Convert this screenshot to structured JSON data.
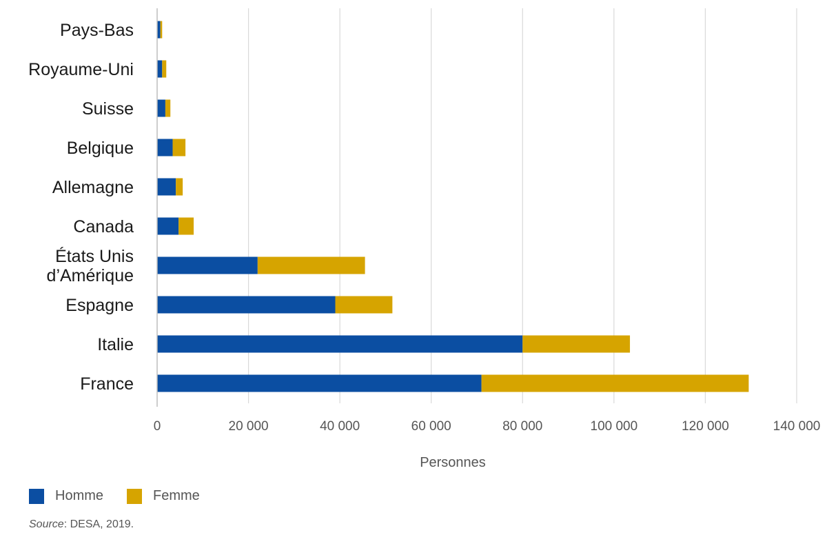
{
  "chart_data": {
    "type": "bar",
    "orientation": "horizontal",
    "stacked": true,
    "categories": [
      "Pays-Bas",
      "Royaume-Uni",
      "Suisse",
      "Belgique",
      "Allemagne",
      "Canada",
      "États Unis d’Amérique",
      "Espagne",
      "Italie",
      "France"
    ],
    "category_lines": [
      [
        "Pays-Bas"
      ],
      [
        "Royaume-Uni"
      ],
      [
        "Suisse"
      ],
      [
        "Belgique"
      ],
      [
        "Allemagne"
      ],
      [
        "Canada"
      ],
      [
        "États Unis",
        "d’Amérique"
      ],
      [
        "Espagne"
      ],
      [
        "Italie"
      ],
      [
        "France"
      ]
    ],
    "series": [
      {
        "name": "Homme",
        "color": "#0b4ea2",
        "values": [
          700,
          1100,
          1800,
          3400,
          4100,
          4700,
          22000,
          39000,
          80000,
          71000
        ]
      },
      {
        "name": "Femme",
        "color": "#d6a400",
        "values": [
          400,
          900,
          1100,
          2800,
          1500,
          3300,
          23500,
          12500,
          23500,
          58500
        ]
      }
    ],
    "xlabel": "Personnes",
    "xlim": [
      0,
      140000
    ],
    "xticks": [
      0,
      20000,
      40000,
      60000,
      80000,
      100000,
      120000,
      140000
    ],
    "xtick_labels": [
      "0",
      "20 000",
      "40 000",
      "60 000",
      "80 000",
      "100 000",
      "120 000",
      "140 000"
    ],
    "grid": "vertical",
    "legend_position": "bottom-left"
  },
  "source": {
    "label": "Source",
    "text": ": DESA, 2019."
  }
}
